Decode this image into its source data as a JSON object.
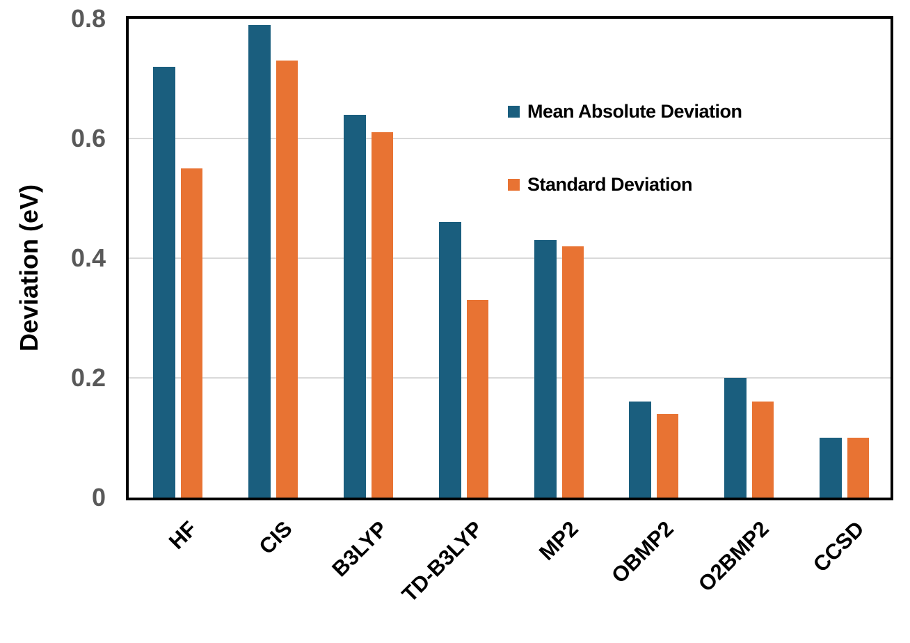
{
  "chart_data": {
    "type": "bar",
    "title": "",
    "categories": [
      "HF",
      "CIS",
      "B3LYP",
      "TD-B3LYP",
      "MP2",
      "OBMP2",
      "O2BMP2",
      "CCSD"
    ],
    "series": [
      {
        "name": "Mean Absolute Deviation",
        "color": "#1A5E7E",
        "values": [
          0.72,
          0.79,
          0.64,
          0.46,
          0.43,
          0.16,
          0.2,
          0.1
        ]
      },
      {
        "name": "Standard Deviation",
        "color": "#E87333",
        "values": [
          0.55,
          0.73,
          0.61,
          0.33,
          0.42,
          0.14,
          0.16,
          0.1
        ]
      }
    ],
    "xlabel": "",
    "ylabel": "Deviation (eV)",
    "ylim": [
      0,
      0.8
    ],
    "yticks": [
      0,
      0.2,
      0.4,
      0.6,
      0.8
    ],
    "ytick_labels": [
      "0",
      "0.2",
      "0.4",
      "0.6",
      "0.8"
    ],
    "grid": true,
    "legend_position": "upper-right-inside"
  },
  "style": {
    "tick_label_color": "#595959",
    "grid_color": "#D9D9D9",
    "border_color": "#000000",
    "background_color": "#FFFFFF"
  }
}
